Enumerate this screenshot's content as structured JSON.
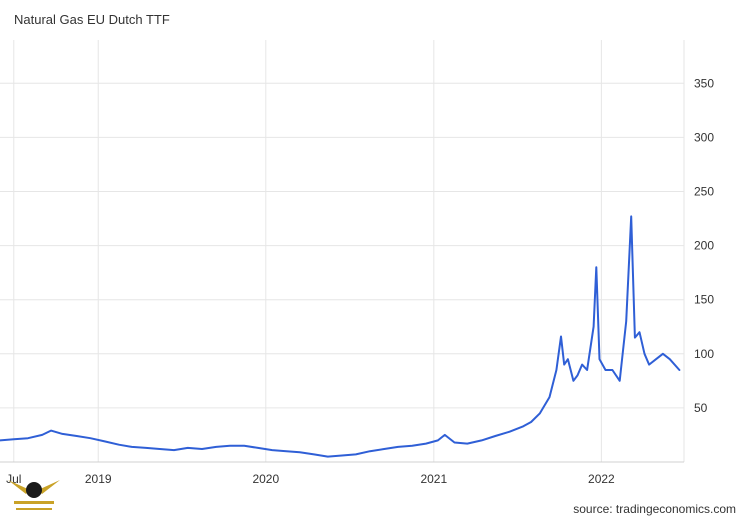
{
  "chart_data": {
    "type": "line",
    "title": "Natural Gas EU Dutch TTF",
    "source": "source: tradingeconomics.com",
    "x_tick_labels": [
      "Jul",
      "2019",
      "2020",
      "2021",
      "2022"
    ],
    "x_tick_dates": [
      "2018-07-01",
      "2019-01-01",
      "2020-01-01",
      "2021-01-01",
      "2022-01-01"
    ],
    "y_ticks": [
      50,
      100,
      150,
      200,
      250,
      300,
      350
    ],
    "xlim": [
      "2018-06-01",
      "2022-06-30"
    ],
    "ylim": [
      0,
      390
    ],
    "grid": true,
    "series": [
      {
        "color": "#2f5fd6",
        "points": [
          [
            "2018-06-01",
            20
          ],
          [
            "2018-07-01",
            21
          ],
          [
            "2018-08-01",
            22
          ],
          [
            "2018-09-01",
            25
          ],
          [
            "2018-09-20",
            29
          ],
          [
            "2018-10-15",
            26
          ],
          [
            "2018-11-15",
            24
          ],
          [
            "2018-12-15",
            22
          ],
          [
            "2019-01-15",
            19
          ],
          [
            "2019-02-15",
            16
          ],
          [
            "2019-03-15",
            14
          ],
          [
            "2019-04-15",
            13
          ],
          [
            "2019-05-15",
            12
          ],
          [
            "2019-06-15",
            11
          ],
          [
            "2019-07-15",
            13
          ],
          [
            "2019-08-15",
            12
          ],
          [
            "2019-09-15",
            14
          ],
          [
            "2019-10-15",
            15
          ],
          [
            "2019-11-15",
            15
          ],
          [
            "2019-12-15",
            13
          ],
          [
            "2020-01-15",
            11
          ],
          [
            "2020-02-15",
            10
          ],
          [
            "2020-03-15",
            9
          ],
          [
            "2020-04-15",
            7
          ],
          [
            "2020-05-15",
            5
          ],
          [
            "2020-06-15",
            6
          ],
          [
            "2020-07-15",
            7
          ],
          [
            "2020-08-15",
            10
          ],
          [
            "2020-09-15",
            12
          ],
          [
            "2020-10-15",
            14
          ],
          [
            "2020-11-15",
            15
          ],
          [
            "2020-12-15",
            17
          ],
          [
            "2021-01-10",
            20
          ],
          [
            "2021-01-25",
            25
          ],
          [
            "2021-02-15",
            18
          ],
          [
            "2021-03-15",
            17
          ],
          [
            "2021-04-15",
            20
          ],
          [
            "2021-05-15",
            24
          ],
          [
            "2021-06-15",
            28
          ],
          [
            "2021-07-15",
            33
          ],
          [
            "2021-08-01",
            37
          ],
          [
            "2021-08-20",
            45
          ],
          [
            "2021-09-10",
            60
          ],
          [
            "2021-09-25",
            85
          ],
          [
            "2021-10-05",
            116
          ],
          [
            "2021-10-12",
            90
          ],
          [
            "2021-10-20",
            95
          ],
          [
            "2021-11-01",
            75
          ],
          [
            "2021-11-10",
            80
          ],
          [
            "2021-11-20",
            90
          ],
          [
            "2021-12-01",
            85
          ],
          [
            "2021-12-15",
            125
          ],
          [
            "2021-12-21",
            180
          ],
          [
            "2021-12-28",
            95
          ],
          [
            "2022-01-10",
            85
          ],
          [
            "2022-01-25",
            85
          ],
          [
            "2022-02-10",
            75
          ],
          [
            "2022-02-24",
            130
          ],
          [
            "2022-03-07",
            227
          ],
          [
            "2022-03-15",
            115
          ],
          [
            "2022-03-25",
            120
          ],
          [
            "2022-04-05",
            100
          ],
          [
            "2022-04-15",
            90
          ],
          [
            "2022-04-30",
            95
          ],
          [
            "2022-05-15",
            100
          ],
          [
            "2022-05-30",
            95
          ],
          [
            "2022-06-20",
            85
          ]
        ]
      }
    ]
  }
}
